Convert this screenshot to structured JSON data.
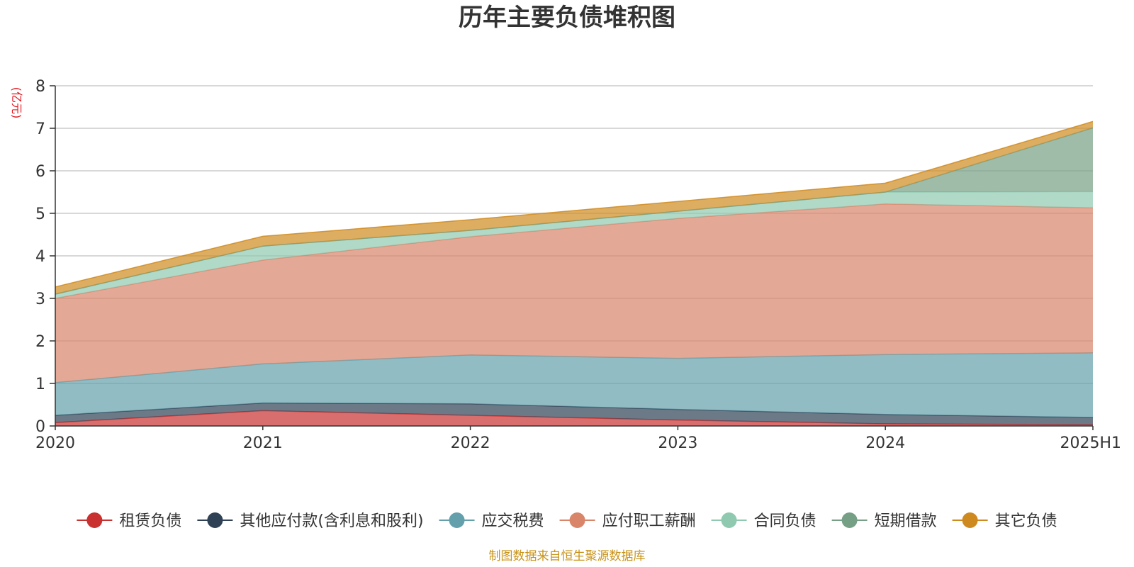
{
  "chart_data": {
    "type": "area",
    "stacked": true,
    "title": "历年主要负债堆积图",
    "unit_label": "(亿元)",
    "unit_color": "#e0191f",
    "categories": [
      "2020",
      "2021",
      "2022",
      "2023",
      "2024",
      "2025H1"
    ],
    "ylim": [
      0,
      8
    ],
    "yticks": [
      "0",
      "1",
      "2",
      "3",
      "4",
      "5",
      "6",
      "7",
      "8"
    ],
    "grid": true,
    "legend_position": "bottom",
    "series": [
      {
        "name": "租赁负债",
        "color": "#c8312f",
        "values": [
          0.08,
          0.36,
          0.25,
          0.14,
          0.05,
          0.03
        ]
      },
      {
        "name": "其他应付款(含利息和股利)",
        "color": "#2e4155",
        "values": [
          0.17,
          0.18,
          0.27,
          0.25,
          0.22,
          0.17
        ]
      },
      {
        "name": "应交税费",
        "color": "#63a0ab",
        "values": [
          0.77,
          0.92,
          1.15,
          1.2,
          1.41,
          1.52
        ]
      },
      {
        "name": "应付职工薪酬",
        "color": "#d98569",
        "values": [
          1.98,
          2.44,
          2.78,
          3.29,
          3.54,
          3.41
        ]
      },
      {
        "name": "合同负债",
        "color": "#8fc9b0",
        "values": [
          0.1,
          0.33,
          0.15,
          0.17,
          0.28,
          0.38
        ]
      },
      {
        "name": "短期借款",
        "color": "#76a085",
        "values": [
          0.0,
          0.0,
          0.0,
          0.0,
          0.0,
          1.5
        ]
      },
      {
        "name": "其它负债",
        "color": "#cf8a1f",
        "values": [
          0.17,
          0.23,
          0.25,
          0.23,
          0.21,
          0.15
        ]
      }
    ]
  },
  "footer": {
    "source": "制图数据来自恒生聚源数据库",
    "source_color": "#c8931a"
  }
}
